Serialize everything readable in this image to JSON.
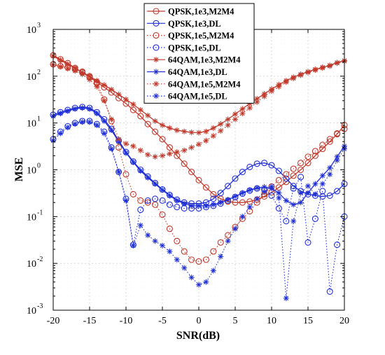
{
  "chart_data": {
    "type": "line",
    "title": "",
    "xlabel": "SNR(dB)",
    "ylabel": "MSE",
    "xlim": [
      -20,
      20
    ],
    "ylim": [
      0.001,
      1000
    ],
    "yscale": "log",
    "grid": true,
    "legend_position": "top-center",
    "x_ticks": [
      "-20",
      "-15",
      "-10",
      "-5",
      "0",
      "5",
      "10",
      "15",
      "20"
    ],
    "y_ticks": [
      {
        "base": "10",
        "exp": "-3",
        "value": 0.001
      },
      {
        "base": "10",
        "exp": "-2",
        "value": 0.01
      },
      {
        "base": "10",
        "exp": "-1",
        "value": 0.1
      },
      {
        "base": "10",
        "exp": "0",
        "value": 1
      },
      {
        "base": "10",
        "exp": "1",
        "value": 10
      },
      {
        "base": "10",
        "exp": "2",
        "value": 100
      },
      {
        "base": "10",
        "exp": "3",
        "value": 1000
      }
    ],
    "x": [
      -20,
      -19,
      -18,
      -17,
      -16,
      -15,
      -14,
      -13,
      -12,
      -11,
      -10,
      -9,
      -8,
      -7,
      -6,
      -5,
      -4,
      -3,
      -2,
      -1,
      0,
      1,
      2,
      3,
      4,
      5,
      6,
      7,
      8,
      9,
      10,
      11,
      12,
      13,
      14,
      15,
      16,
      17,
      18,
      19,
      20
    ],
    "series": [
      {
        "name": "QPSK,1e3,M2M4",
        "color": "#c0392b",
        "marker": "circle",
        "line": "solid",
        "values": [
          280,
          230,
          190,
          150,
          120,
          95,
          75,
          58,
          45,
          34,
          26,
          19,
          14,
          9.5,
          6.5,
          4.5,
          3,
          2,
          1.35,
          0.9,
          0.6,
          0.42,
          0.3,
          0.24,
          0.21,
          0.2,
          0.2,
          0.21,
          0.23,
          0.27,
          0.33,
          0.42,
          0.55,
          0.75,
          1.0,
          1.4,
          2.0,
          2.8,
          4.0,
          5.8,
          9.0
        ]
      },
      {
        "name": "QPSK,1e3,DL",
        "color": "#1f2fd6",
        "marker": "circle",
        "line": "solid",
        "values": [
          15,
          17,
          19,
          21,
          22,
          21,
          17,
          12,
          7.5,
          4.2,
          2.4,
          1.5,
          1.0,
          0.72,
          0.52,
          0.38,
          0.29,
          0.23,
          0.2,
          0.19,
          0.19,
          0.2,
          0.24,
          0.32,
          0.45,
          0.65,
          0.9,
          1.15,
          1.35,
          1.4,
          1.25,
          0.95,
          0.65,
          0.45,
          0.35,
          0.3,
          0.28,
          0.27,
          0.28,
          0.35,
          0.5
        ]
      },
      {
        "name": "QPSK,1e5,M2M4",
        "color": "#c0392b",
        "marker": "circle",
        "line": "dotted",
        "values": [
          180,
          165,
          155,
          140,
          125,
          100,
          70,
          32,
          11,
          3.0,
          0.8,
          0.3,
          0.22,
          0.2,
          0.18,
          0.11,
          0.055,
          0.03,
          0.018,
          0.012,
          0.011,
          0.012,
          0.018,
          0.028,
          0.04,
          0.06,
          0.09,
          0.13,
          0.2,
          0.3,
          0.44,
          0.6,
          0.8,
          1.05,
          1.4,
          1.9,
          2.5,
          3.4,
          4.5,
          6.0,
          7.5
        ]
      },
      {
        "name": "QPSK,1e5,DL",
        "color": "#1f2fd6",
        "marker": "circle",
        "line": "dotted",
        "values": [
          4.5,
          6.5,
          8.5,
          10,
          11,
          11,
          9.5,
          6.5,
          3.0,
          0.9,
          0.24,
          0.025,
          0.14,
          0.22,
          0.24,
          0.22,
          0.18,
          0.16,
          0.15,
          0.15,
          0.15,
          0.16,
          0.17,
          0.19,
          0.22,
          0.26,
          0.31,
          0.36,
          0.4,
          0.38,
          0.28,
          0.15,
          0.08,
          0.4,
          0.7,
          0.028,
          0.09,
          0.35,
          0.0025,
          0.025,
          0.1
        ]
      },
      {
        "name": "64QAM,1e3,M2M4",
        "color": "#c0392b",
        "marker": "star",
        "line": "solid",
        "values": [
          270,
          220,
          180,
          150,
          120,
          100,
          80,
          65,
          52,
          41,
          32,
          25,
          19,
          14.5,
          11,
          9,
          7.8,
          7,
          6.6,
          6.3,
          6.2,
          6.6,
          7.8,
          9.5,
          12,
          15.5,
          20,
          26,
          33,
          42,
          53,
          66,
          80,
          95,
          110,
          125,
          140,
          155,
          170,
          195,
          215
        ]
      },
      {
        "name": "64QAM,1e3,DL",
        "color": "#1f2fd6",
        "marker": "star",
        "line": "solid",
        "values": [
          14,
          16,
          18,
          20,
          21,
          20,
          16,
          11,
          7,
          4,
          2.3,
          1.45,
          0.95,
          0.68,
          0.5,
          0.37,
          0.28,
          0.22,
          0.19,
          0.17,
          0.17,
          0.17,
          0.18,
          0.2,
          0.23,
          0.27,
          0.32,
          0.37,
          0.41,
          0.43,
          0.4,
          0.32,
          0.22,
          0.18,
          0.2,
          0.32,
          0.5,
          0.75,
          1.1,
          1.9,
          3.2
        ]
      },
      {
        "name": "64QAM,1e5,M2M4",
        "color": "#c0392b",
        "marker": "star",
        "line": "dotted",
        "values": [
          175,
          160,
          145,
          130,
          110,
          85,
          60,
          30,
          12,
          4.5,
          3.6,
          3.2,
          2.6,
          2.1,
          1.9,
          2.0,
          2.2,
          2.4,
          2.6,
          3.0,
          3.5,
          4.2,
          5.3,
          6.8,
          9,
          12,
          16,
          21,
          28,
          37,
          48,
          60,
          75,
          90,
          105,
          120,
          135,
          150,
          165,
          190,
          210
        ]
      },
      {
        "name": "64QAM,1e5,DL",
        "color": "#1f2fd6",
        "marker": "star",
        "line": "dotted",
        "values": [
          4.2,
          6.0,
          8.0,
          9.5,
          10.5,
          10.5,
          9.0,
          6.0,
          2.8,
          0.9,
          0.22,
          0.024,
          0.065,
          0.04,
          0.03,
          0.024,
          0.018,
          0.012,
          0.008,
          0.005,
          0.0035,
          0.004,
          0.007,
          0.014,
          0.03,
          0.055,
          0.1,
          0.16,
          0.24,
          0.34,
          0.44,
          0.25,
          0.0018,
          0.08,
          0.32,
          0.45,
          0.3,
          0.5,
          0.8,
          1.6,
          2.8
        ]
      }
    ]
  }
}
